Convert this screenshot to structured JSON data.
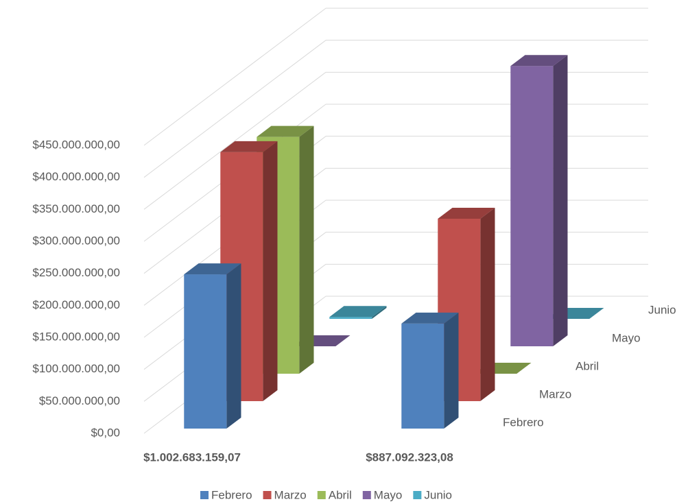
{
  "chart_data": {
    "type": "bar3d",
    "categories": [
      "$1.002.683.159,07",
      "$887.092.323,08"
    ],
    "series": [
      {
        "name": "Febrero",
        "color": "#4f81bd",
        "values": [
          241000000,
          164000000
        ]
      },
      {
        "name": "Marzo",
        "color": "#c0504d",
        "values": [
          389000000,
          285000000
        ]
      },
      {
        "name": "Abril",
        "color": "#9bbb59",
        "values": [
          370000000,
          0
        ]
      },
      {
        "name": "Mayo",
        "color": "#8064a2",
        "values": [
          0,
          438000000
        ]
      },
      {
        "name": "Junio",
        "color": "#4bacc6",
        "values": [
          3000000,
          0
        ]
      }
    ],
    "ylim": [
      0,
      450000000
    ],
    "yticks": [
      {
        "value": 0,
        "label": "$0,00"
      },
      {
        "value": 50000000,
        "label": "$50.000.000,00"
      },
      {
        "value": 100000000,
        "label": "$100.000.000,00"
      },
      {
        "value": 150000000,
        "label": "$150.000.000,00"
      },
      {
        "value": 200000000,
        "label": "$200.000.000,00"
      },
      {
        "value": 250000000,
        "label": "$250.000.000,00"
      },
      {
        "value": 300000000,
        "label": "$300.000.000,00"
      },
      {
        "value": 350000000,
        "label": "$350.000.000,00"
      },
      {
        "value": 400000000,
        "label": "$400.000.000,00"
      },
      {
        "value": 450000000,
        "label": "$450.000.000,00"
      }
    ],
    "grid": true,
    "legend": "bottom"
  }
}
